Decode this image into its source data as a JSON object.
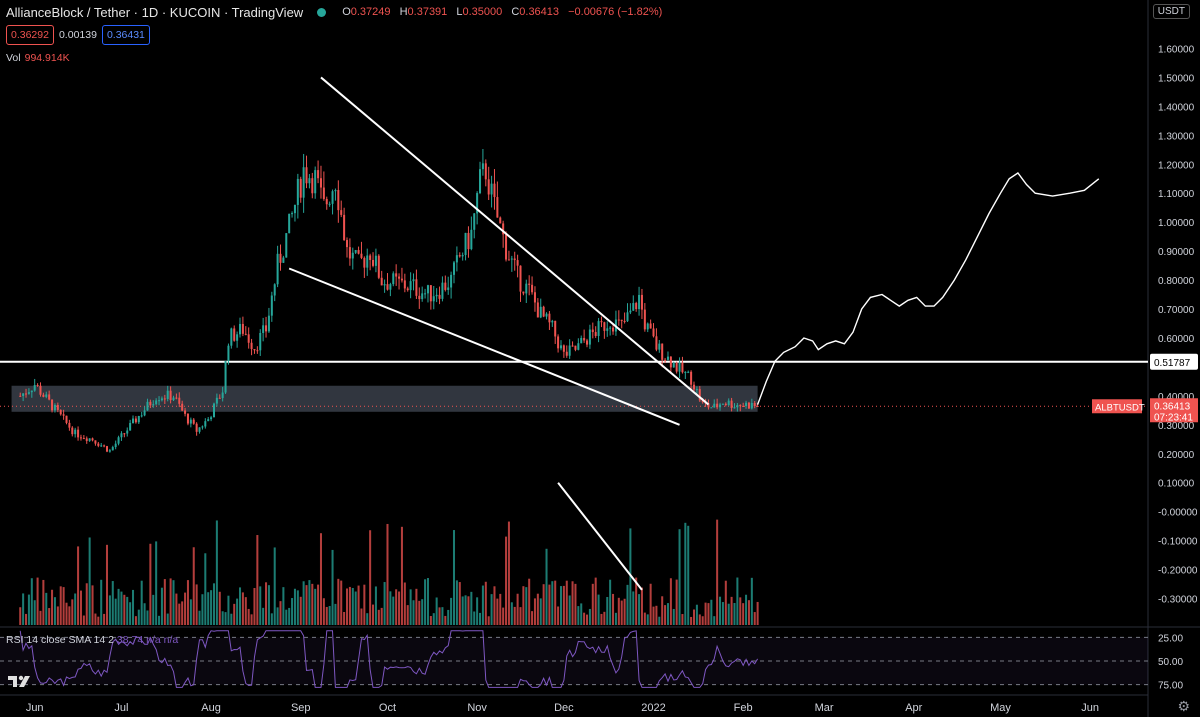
{
  "header": {
    "title": "AllianceBlock / Tether · 1D · KUCOIN · TradingView",
    "ohlc": {
      "open_label": "O",
      "open": "0.37249",
      "high_label": "H",
      "high": "0.37391",
      "low_label": "L",
      "low": "0.35000",
      "close_label": "C",
      "close": "0.36413",
      "change": "−0.00676 (−1.82%)"
    },
    "bid": "0.36292",
    "spread": "0.00139",
    "ask": "0.36431",
    "vol_label": "Vol",
    "vol_value": "994.914K",
    "currency": "USDT"
  },
  "rsi": {
    "label": "RSI 14 close SMA 14 2",
    "value": "38.74",
    "na1": "n/a",
    "na2": "n/a"
  },
  "colors": {
    "up": "#26a69a",
    "down": "#ef5350",
    "line": "#ffffff",
    "rsi": "#7e57c2",
    "zone": "#3a3f4a",
    "price_tag": "#ef5350"
  },
  "icons": {
    "logo": "tradingview-logo-icon",
    "settings": "gear-icon",
    "status": "market-open-dot-icon"
  },
  "chart_data": {
    "type": "candlestick",
    "y_ticks": [
      "1.60000",
      "1.50000",
      "1.40000",
      "1.30000",
      "1.20000",
      "1.10000",
      "1.00000",
      "0.90000",
      "0.80000",
      "0.70000",
      "0.60000",
      "0.40000",
      "0.30000",
      "0.20000",
      "0.10000",
      "-0.00000",
      "-0.10000",
      "-0.20000",
      "-0.30000"
    ],
    "ylim": [
      -0.35,
      1.65
    ],
    "x_ticks": [
      "Jun",
      "Jul",
      "Aug",
      "Sep",
      "Oct",
      "Nov",
      "Dec",
      "2022",
      "Feb",
      "Mar",
      "Apr",
      "May",
      "Jun"
    ],
    "x_tick_days": [
      0,
      30,
      61,
      92,
      122,
      153,
      183,
      214,
      245,
      273,
      304,
      334,
      365
    ],
    "x_range_days": [
      -12,
      385
    ],
    "last_price_label": "ALBTUSDT",
    "last_price": "0.36413",
    "countdown": "07:23:41",
    "last_price_value": 0.36413,
    "resistance_level": 0.51787,
    "resistance_label": "0.51787",
    "candles_anchor": [
      [
        -5,
        0.4
      ],
      [
        0,
        0.44
      ],
      [
        8,
        0.34
      ],
      [
        14,
        0.27
      ],
      [
        20,
        0.25
      ],
      [
        26,
        0.21
      ],
      [
        30,
        0.26
      ],
      [
        36,
        0.33
      ],
      [
        42,
        0.4
      ],
      [
        48,
        0.4
      ],
      [
        52,
        0.33
      ],
      [
        56,
        0.28
      ],
      [
        60,
        0.32
      ],
      [
        65,
        0.42
      ],
      [
        67,
        0.6
      ],
      [
        72,
        0.63
      ],
      [
        76,
        0.57
      ],
      [
        80,
        0.63
      ],
      [
        84,
        0.85
      ],
      [
        88,
        0.98
      ],
      [
        93,
        1.18
      ],
      [
        97,
        1.15
      ],
      [
        100,
        1.05
      ],
      [
        104,
        1.15
      ],
      [
        108,
        0.9
      ],
      [
        112,
        0.85
      ],
      [
        116,
        0.9
      ],
      [
        120,
        0.8
      ],
      [
        124,
        0.79
      ],
      [
        130,
        0.78
      ],
      [
        136,
        0.75
      ],
      [
        140,
        0.77
      ],
      [
        144,
        0.8
      ],
      [
        147,
        0.88
      ],
      [
        151,
        0.96
      ],
      [
        154,
        1.14
      ],
      [
        156,
        1.18
      ],
      [
        159,
        1.05
      ],
      [
        163,
        0.91
      ],
      [
        167,
        0.81
      ],
      [
        171,
        0.76
      ],
      [
        175,
        0.68
      ],
      [
        179,
        0.63
      ],
      [
        183,
        0.54
      ],
      [
        187,
        0.56
      ],
      [
        191,
        0.6
      ],
      [
        195,
        0.63
      ],
      [
        199,
        0.66
      ],
      [
        203,
        0.64
      ],
      [
        207,
        0.7
      ],
      [
        209,
        0.74
      ],
      [
        211,
        0.65
      ],
      [
        215,
        0.57
      ],
      [
        219,
        0.53
      ],
      [
        223,
        0.49
      ],
      [
        227,
        0.46
      ],
      [
        231,
        0.37
      ],
      [
        235,
        0.36
      ],
      [
        238,
        0.38
      ],
      [
        242,
        0.37
      ],
      [
        247,
        0.37
      ],
      [
        250,
        0.364
      ]
    ],
    "projection_path": [
      [
        250,
        0.37
      ],
      [
        253,
        0.45
      ],
      [
        256,
        0.52
      ],
      [
        259,
        0.55
      ],
      [
        263,
        0.57
      ],
      [
        266,
        0.6
      ],
      [
        269,
        0.59
      ],
      [
        271,
        0.56
      ],
      [
        274,
        0.58
      ],
      [
        277,
        0.59
      ],
      [
        280,
        0.58
      ],
      [
        283,
        0.62
      ],
      [
        286,
        0.7
      ],
      [
        289,
        0.74
      ],
      [
        293,
        0.75
      ],
      [
        296,
        0.73
      ],
      [
        299,
        0.71
      ],
      [
        302,
        0.73
      ],
      [
        305,
        0.74
      ],
      [
        308,
        0.71
      ],
      [
        311,
        0.71
      ],
      [
        314,
        0.74
      ],
      [
        318,
        0.8
      ],
      [
        322,
        0.87
      ],
      [
        326,
        0.95
      ],
      [
        330,
        1.03
      ],
      [
        334,
        1.1
      ],
      [
        337,
        1.15
      ],
      [
        340,
        1.17
      ],
      [
        343,
        1.13
      ],
      [
        346,
        1.1
      ],
      [
        352,
        1.09
      ],
      [
        358,
        1.1
      ],
      [
        363,
        1.11
      ],
      [
        368,
        1.15
      ]
    ],
    "trendlines": [
      {
        "name": "upper",
        "points": [
          [
            99,
            1.5
          ],
          [
            233,
            0.37
          ]
        ]
      },
      {
        "name": "lower",
        "points": [
          [
            88,
            0.84
          ],
          [
            223,
            0.3
          ]
        ]
      },
      {
        "name": "volume-trend",
        "points": [
          [
            181,
            0.1
          ],
          [
            210,
            -0.27
          ]
        ]
      }
    ],
    "support_zone": [
      0.345,
      0.435
    ],
    "rsi_levels": [
      25,
      50,
      75
    ],
    "rsi_ticks": [
      "75.00",
      "50.00",
      "25.00"
    ]
  }
}
